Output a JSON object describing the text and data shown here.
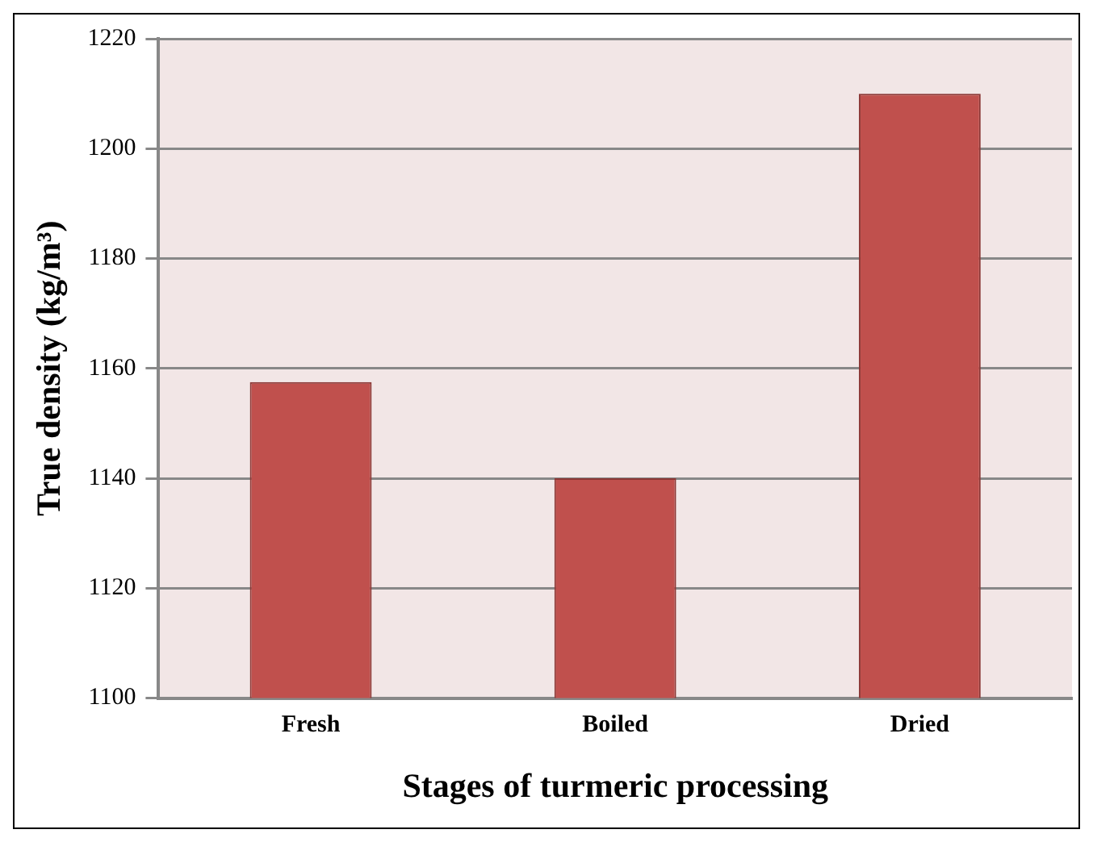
{
  "chart_data": {
    "type": "bar",
    "xlabel": "Stages of turmeric processing",
    "ylabel": "True density (kg/m³)",
    "categories": [
      "Fresh",
      "Boiled",
      "Dried"
    ],
    "values": [
      1157.5,
      1140,
      1210
    ],
    "color": "#c0504d",
    "ylim": [
      1100,
      1220
    ],
    "yticks": [
      1100,
      1120,
      1140,
      1160,
      1180,
      1200,
      1220
    ],
    "grid": "y",
    "legend": false
  }
}
